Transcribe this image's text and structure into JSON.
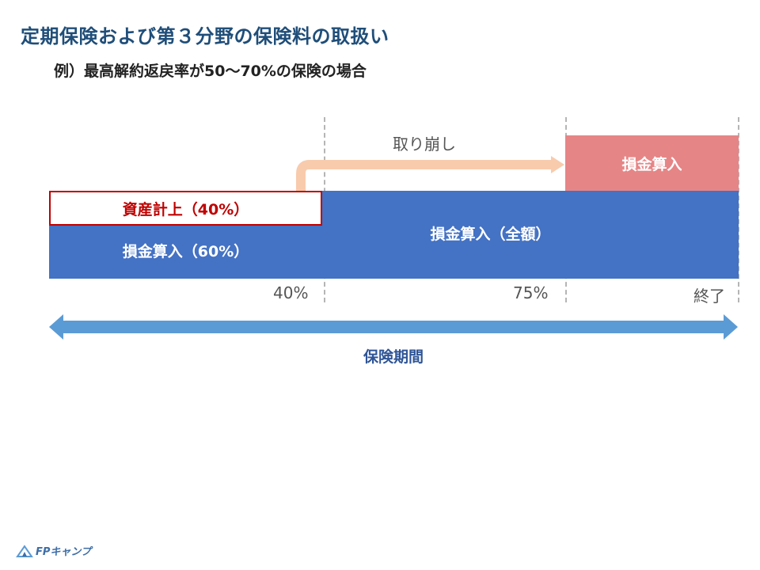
{
  "title": "定期保険および第３分野の保険料の取扱い",
  "subtitle": "例）最高解約返戻率が50～70%の保険の場合",
  "blocks": {
    "asset_label": "資産計上（40%）",
    "expense_left_label": "損金算入（60%）",
    "expense_full_label": "損金算入（全額）",
    "expense_right_label": "損金算入"
  },
  "arrow_label": "取り崩し",
  "ticks": [
    "40%",
    "75%",
    "終了"
  ],
  "period_label": "保険期間",
  "logo_text": "FPキャンプ",
  "colors": {
    "title": "#1f4e79",
    "blue_block": "#4472c4",
    "red_block": "#e68586",
    "asset_border": "#c00000",
    "peach_arrow": "#f8cbad",
    "period_arrow": "#5b9bd5"
  }
}
